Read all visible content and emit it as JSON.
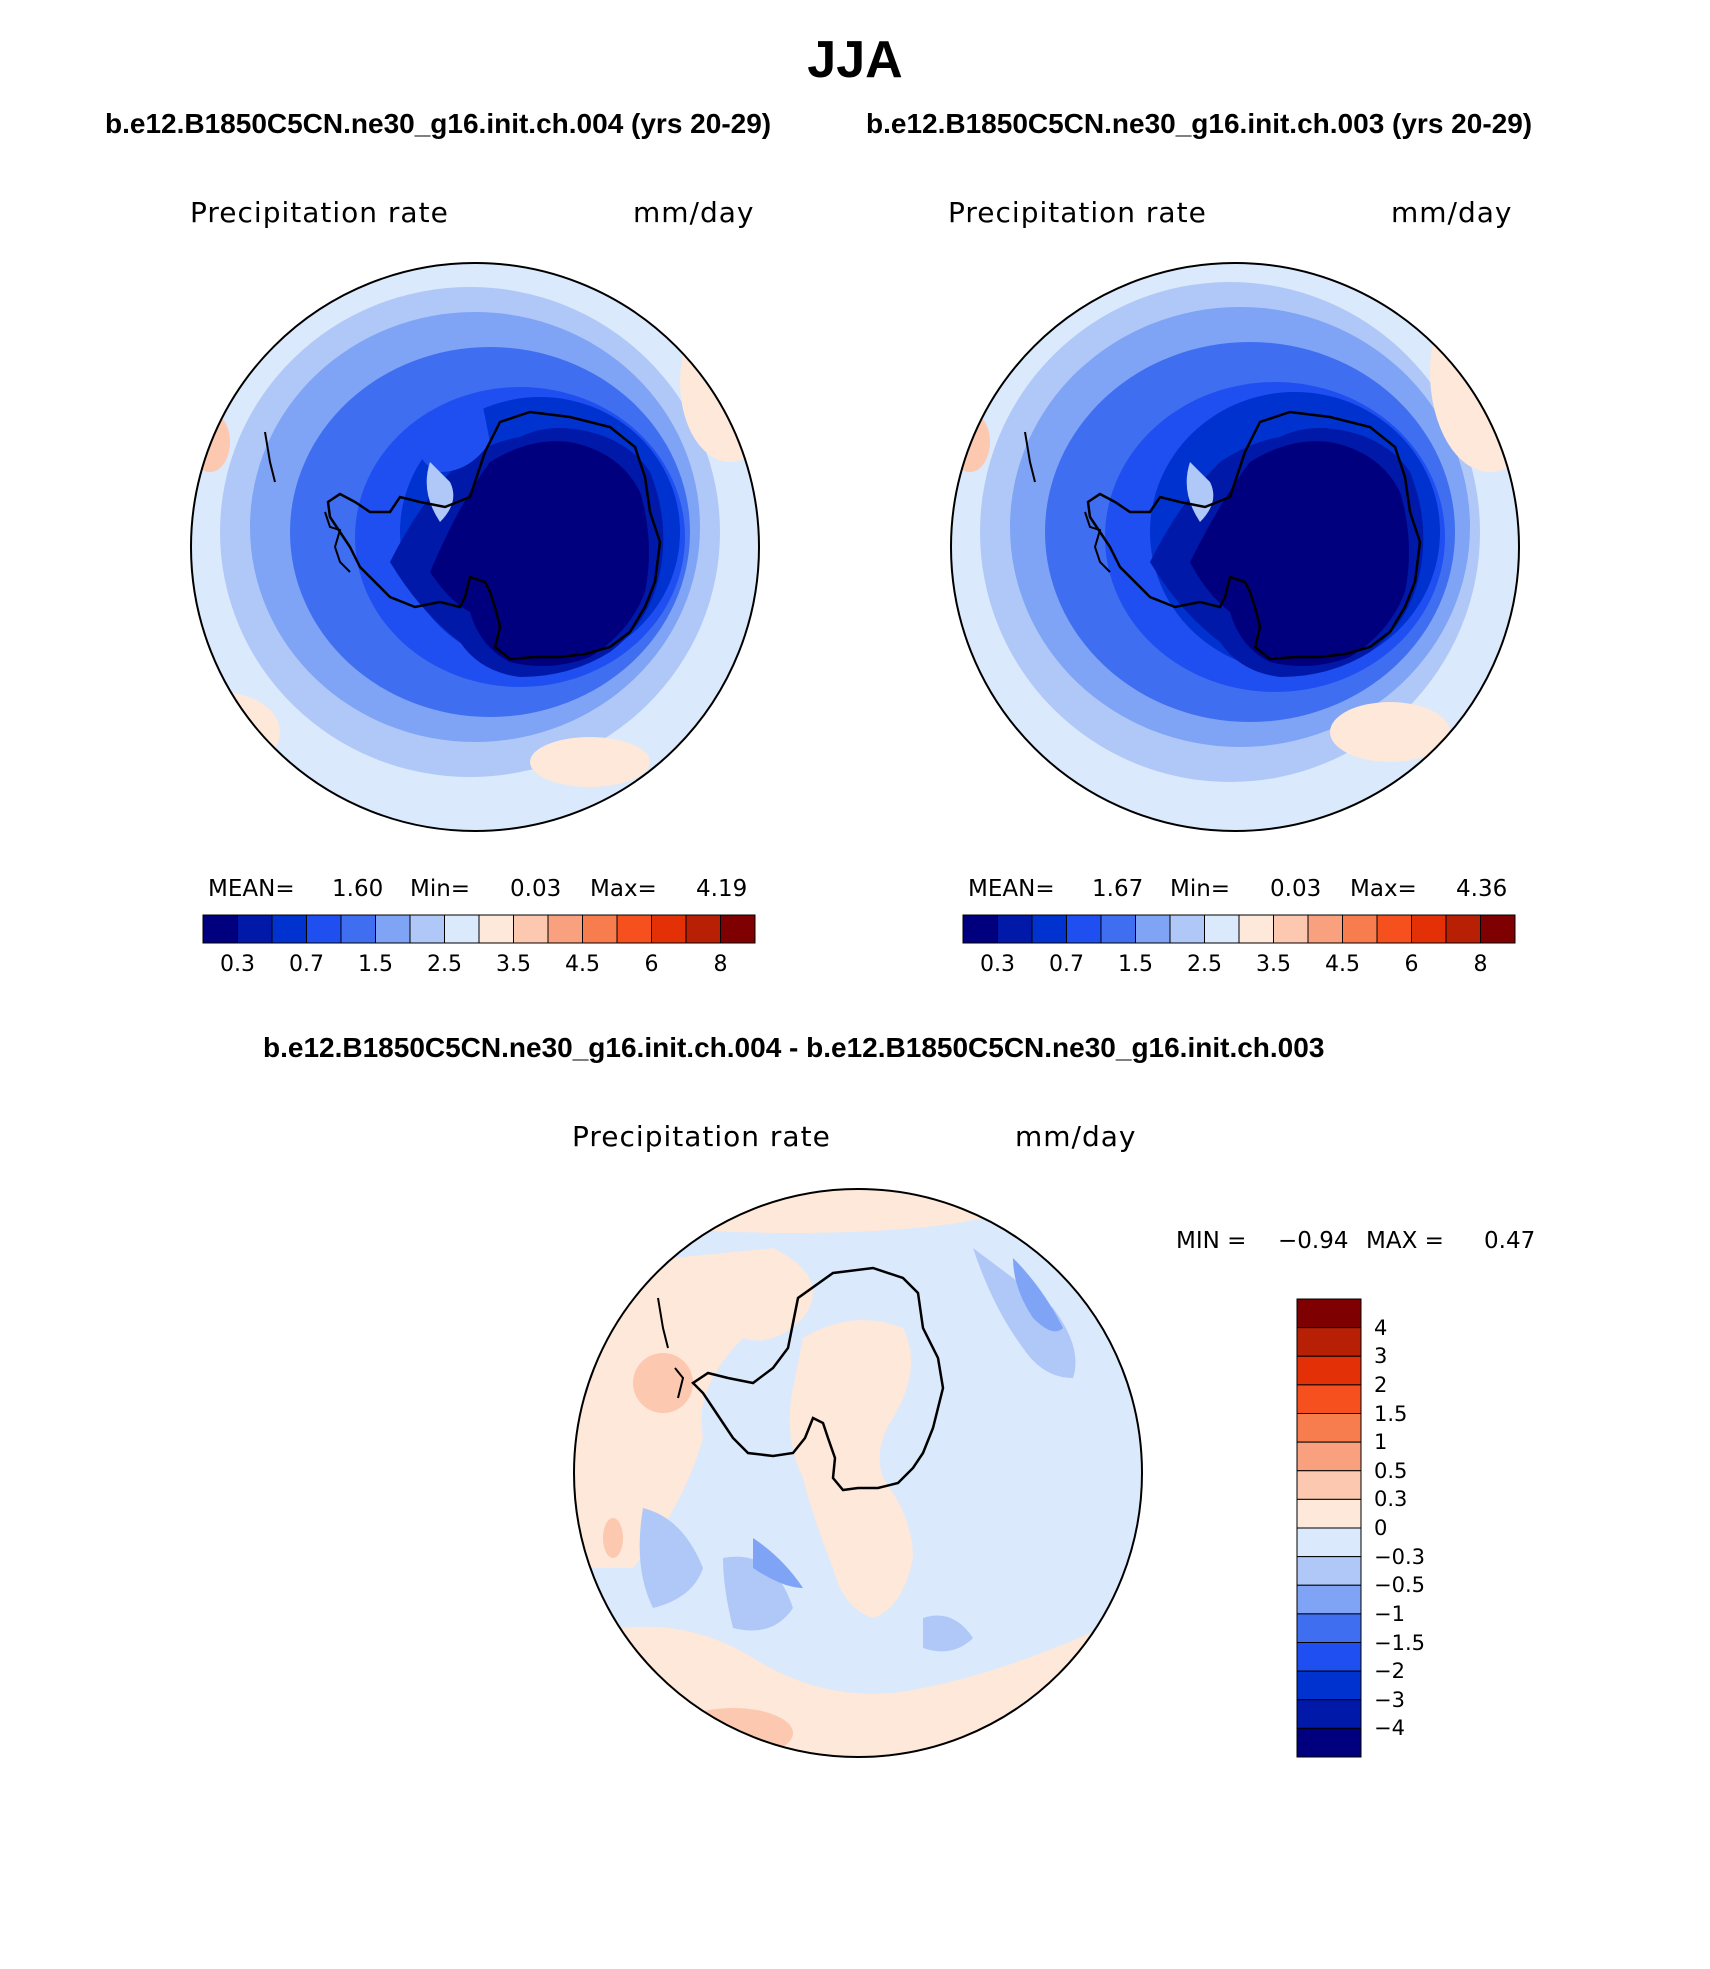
{
  "title": "JJA",
  "panels": [
    {
      "case": "b.e12.B1850C5CN.ne30_g16.init.ch.004 (yrs 20-29)",
      "variable": "Precipitation rate",
      "units": "mm/day",
      "mean_label": "MEAN=",
      "mean": "1.60",
      "min_label": "Min=",
      "min": "0.03",
      "max_label": "Max=",
      "max": "4.19"
    },
    {
      "case": "b.e12.B1850C5CN.ne30_g16.init.ch.003 (yrs 20-29)",
      "variable": "Precipitation rate",
      "units": "mm/day",
      "mean_label": "MEAN=",
      "mean": "1.67",
      "min_label": "Min=",
      "min": "0.03",
      "max_label": "Max=",
      "max": "4.36"
    }
  ],
  "diff": {
    "title": "b.e12.B1850C5CN.ne30_g16.init.ch.004 - b.e12.B1850C5CN.ne30_g16.init.ch.003",
    "variable": "Precipitation rate",
    "units": "mm/day",
    "min_label": "MIN =",
    "min": "−0.94",
    "max_label": "MAX =",
    "max": "0.47"
  },
  "colorbar_main": {
    "colors": [
      "#00007f",
      "#0019a8",
      "#0032d0",
      "#1f4ff0",
      "#3f6ff0",
      "#7fa3f5",
      "#afc8f8",
      "#dbe9fc",
      "#fde8da",
      "#fcc8b0",
      "#f9a07f",
      "#f87d4e",
      "#f7501f",
      "#e43006",
      "#b82005",
      "#7f0000"
    ],
    "ticks": [
      "0.3",
      "0.7",
      "1.5",
      "2.5",
      "3.5",
      "4.5",
      "6",
      "8"
    ]
  },
  "colorbar_diff": {
    "colors": [
      "#7f0000",
      "#b82005",
      "#e43006",
      "#f7501f",
      "#f87d4e",
      "#f9a07f",
      "#fcc8b0",
      "#fde8da",
      "#dbe9fc",
      "#afc8f8",
      "#7fa3f5",
      "#3f6ff0",
      "#1f4ff0",
      "#0032d0",
      "#0019a8",
      "#00007f"
    ],
    "ticks": [
      "4",
      "3",
      "2",
      "1.5",
      "1",
      "0.5",
      "0.3",
      "0",
      "−0.3",
      "−0.5",
      "−1",
      "−1.5",
      "−2",
      "−3",
      "−4"
    ]
  }
}
